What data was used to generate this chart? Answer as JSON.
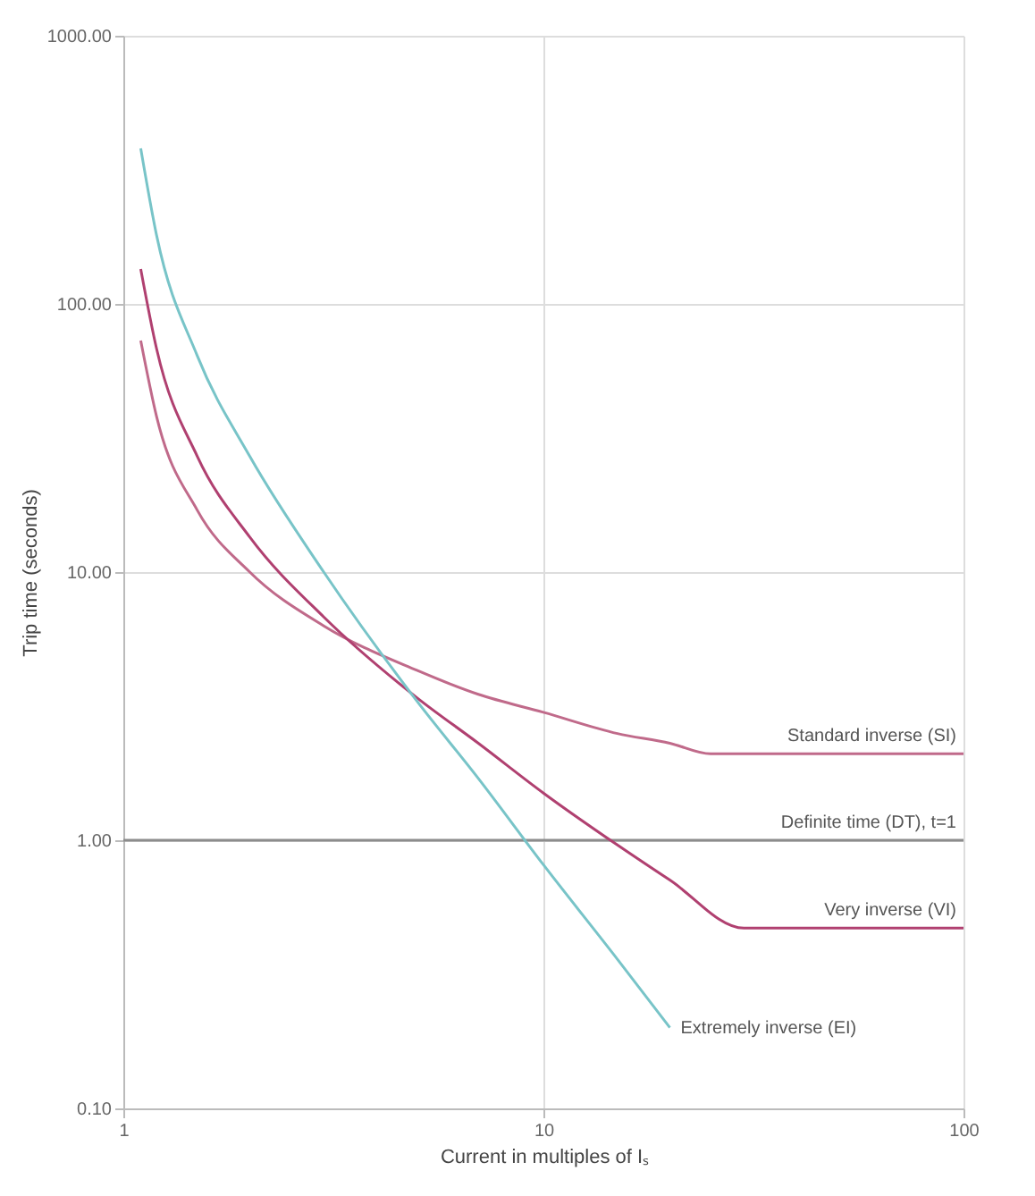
{
  "chart_data": {
    "type": "line",
    "xlabel": "Current in multiples of Iₛ",
    "ylabel": "Trip time (seconds)",
    "log": "xy",
    "grid": true,
    "legend": false,
    "xlim": [
      1,
      100
    ],
    "xticks": [
      1,
      10,
      100
    ],
    "ylim": [
      0.1,
      1000
    ],
    "yticks": [
      {
        "value": 0.1,
        "label": "0.10"
      },
      {
        "value": 1,
        "label": "1.00"
      },
      {
        "value": 10,
        "label": "10.00"
      },
      {
        "value": 100,
        "label": "100.00"
      },
      {
        "value": 1000,
        "label": "1000.00"
      }
    ],
    "series": [
      {
        "name": "Standard inverse (SI)",
        "color": "#c06a8a",
        "x": [
          1.1,
          1.2,
          1.5,
          2,
          3,
          5,
          7,
          10,
          15,
          20,
          25,
          100
        ],
        "values": [
          73,
          38,
          17,
          10,
          6.3,
          4.3,
          3.5,
          3.0,
          2.5,
          2.3,
          2.1,
          2.1
        ]
      },
      {
        "name": "Definite time (DT), t=1",
        "color": "#8c8c8c",
        "x": [
          1,
          100
        ],
        "values": [
          1,
          1
        ]
      },
      {
        "name": "Very inverse (VI)",
        "color": "#b04070",
        "x": [
          1.1,
          1.2,
          1.5,
          2,
          3,
          5,
          7,
          10,
          15,
          20,
          30,
          100
        ],
        "values": [
          135,
          68,
          27,
          13.5,
          6.8,
          3.4,
          2.3,
          1.5,
          0.96,
          0.71,
          0.47,
          0.47
        ]
      },
      {
        "name": "Extremely inverse (EI)",
        "color": "#78c4c8",
        "x": [
          1.1,
          1.2,
          1.5,
          2,
          3,
          5,
          7,
          10,
          15,
          20
        ],
        "values": [
          380,
          180,
          64,
          27,
          10,
          3.3,
          1.7,
          0.81,
          0.36,
          0.2
        ]
      }
    ]
  }
}
